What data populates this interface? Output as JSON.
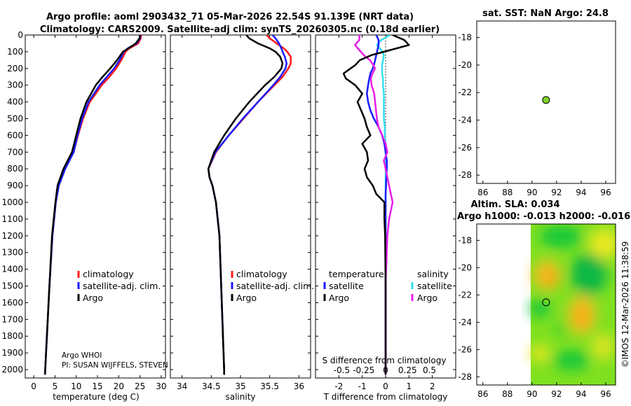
{
  "header": {
    "line1": "Argo profile: aoml 2903432_71 05-Mar-2026 22.54S 91.139E (NRT data)",
    "line2": "Climatology: CARS2009. Satellite-adj clim: synTS_20260305.nc (0.18d earlier)"
  },
  "colors": {
    "climatology": "#ff1a1a",
    "satellite": "#1a1aff",
    "argo": "#000000",
    "satellite_s": "#33e0ee",
    "argo_s": "#e81ee8",
    "sst_dot": "#7dd32b"
  },
  "chart_data": [
    {
      "id": "temperature",
      "type": "line",
      "xlabel": "temperature (deg C)",
      "ylabel": "",
      "xlim": [
        -2,
        31
      ],
      "ylim": [
        2050,
        0
      ],
      "xticks": [
        0,
        5,
        10,
        15,
        20,
        25,
        30
      ],
      "yticks": [
        0,
        100,
        200,
        300,
        400,
        500,
        600,
        700,
        800,
        900,
        1000,
        1100,
        1200,
        1300,
        1400,
        1500,
        1600,
        1700,
        1800,
        1900,
        2000
      ],
      "legend": [
        "climatology",
        "satellite-adj. clim.",
        "Argo"
      ],
      "annotation": [
        "Argo WHOI",
        "PI: SUSAN WIJFFELS, STEVEN"
      ],
      "depth": [
        0,
        20,
        50,
        80,
        100,
        150,
        200,
        250,
        300,
        400,
        500,
        600,
        700,
        800,
        900,
        1000,
        1200,
        1500,
        1800,
        2000,
        2030
      ],
      "series": [
        {
          "name": "climatology",
          "values": [
            25.3,
            25.2,
            24.6,
            22.5,
            21.6,
            20.6,
            19.4,
            17.8,
            16.0,
            13.2,
            11.6,
            10.4,
            9.4,
            7.3,
            5.8,
            5.2,
            4.4,
            3.7,
            3.1,
            2.7,
            2.65
          ]
        },
        {
          "name": "satellite-adj. clim.",
          "values": [
            25.1,
            25.0,
            24.2,
            22.1,
            21.2,
            20.2,
            18.9,
            17.2,
            15.5,
            12.9,
            11.4,
            10.3,
            9.4,
            7.4,
            5.9,
            5.2,
            4.4,
            3.7,
            3.1,
            2.7,
            2.65
          ]
        },
        {
          "name": "Argo",
          "values": [
            25.0,
            24.9,
            24.0,
            22.3,
            21.0,
            19.6,
            18.0,
            16.2,
            14.6,
            12.4,
            11.0,
            10.0,
            9.0,
            7.0,
            5.6,
            5.1,
            4.3,
            3.7,
            3.1,
            2.7,
            2.65
          ]
        }
      ]
    },
    {
      "id": "salinity",
      "type": "line",
      "xlabel": "salinity",
      "xlim": [
        33.8,
        36.2
      ],
      "ylim": [
        2050,
        0
      ],
      "xticks": [
        34,
        34.5,
        35,
        35.5,
        36
      ],
      "legend": [
        "climatology",
        "satellite-adj. clim.",
        "Argo"
      ],
      "depth": [
        0,
        20,
        50,
        80,
        100,
        130,
        170,
        200,
        250,
        300,
        400,
        500,
        600,
        700,
        800,
        850,
        900,
        1000,
        1200,
        1500,
        1800,
        2000,
        2030
      ],
      "series": [
        {
          "name": "climatology",
          "values": [
            35.45,
            35.5,
            35.62,
            35.74,
            35.8,
            35.86,
            35.86,
            35.82,
            35.72,
            35.58,
            35.3,
            35.05,
            34.8,
            34.58,
            34.45,
            34.47,
            34.52,
            34.58,
            34.64,
            34.67,
            34.7,
            34.72,
            34.72
          ]
        },
        {
          "name": "satellite-adj. clim.",
          "values": [
            35.55,
            35.6,
            35.66,
            35.7,
            35.72,
            35.76,
            35.79,
            35.77,
            35.68,
            35.56,
            35.3,
            35.04,
            34.8,
            34.57,
            34.45,
            34.47,
            34.52,
            34.58,
            34.64,
            34.67,
            34.7,
            34.72,
            34.72
          ]
        },
        {
          "name": "Argo",
          "values": [
            35.1,
            35.15,
            35.3,
            35.5,
            35.6,
            35.68,
            35.72,
            35.7,
            35.58,
            35.42,
            35.15,
            34.92,
            34.72,
            34.55,
            34.45,
            34.47,
            34.52,
            34.58,
            34.64,
            34.67,
            34.7,
            34.72,
            34.72
          ]
        }
      ]
    },
    {
      "id": "difference",
      "type": "line",
      "xlabel": "T difference from climatology",
      "top_label": "S difference from climatology",
      "xlim": [
        -3,
        3
      ],
      "ylim": [
        2050,
        0
      ],
      "xticks": [
        -2,
        -1,
        0,
        1,
        2
      ],
      "s_ticks": [
        -0.5,
        -0.25,
        0,
        0.25,
        0.5
      ],
      "legend_titles": [
        "temperature",
        "salinity"
      ],
      "legend": [
        "satellite",
        "Argo",
        "satellite",
        "Argo"
      ],
      "depth": [
        0,
        30,
        60,
        90,
        120,
        150,
        180,
        200,
        230,
        260,
        300,
        350,
        400,
        450,
        500,
        550,
        600,
        650,
        700,
        750,
        800,
        850,
        900,
        950,
        1000,
        1100,
        1200,
        1500,
        1800,
        2000,
        2030
      ],
      "series": [
        {
          "name": "T satellite",
          "values": [
            -0.4,
            -0.3,
            -0.3,
            -0.35,
            -0.4,
            -0.45,
            -0.5,
            -0.55,
            -0.65,
            -0.7,
            -0.75,
            -0.8,
            -0.75,
            -0.65,
            -0.5,
            -0.3,
            -0.15,
            -0.05,
            0.0,
            0.05,
            0.05,
            0.03,
            0.02,
            0.0,
            0.0,
            0.0,
            0.0,
            0.0,
            0.0,
            0.0,
            0.0
          ]
        },
        {
          "name": "T Argo",
          "values": [
            0.3,
            0.8,
            1.0,
            0.2,
            -0.6,
            -1.1,
            -1.3,
            -1.5,
            -1.8,
            -1.7,
            -1.3,
            -1.0,
            -1.2,
            -1.05,
            -0.9,
            -0.8,
            -0.65,
            -1.0,
            -0.8,
            -0.75,
            -0.9,
            -0.8,
            -0.55,
            -0.4,
            -0.05,
            -0.05,
            -0.02,
            0.0,
            0.0,
            0.0,
            0.0
          ]
        },
        {
          "name": "S satellite",
          "values": [
            0.05,
            -0.05,
            -0.1,
            -0.05,
            -0.02,
            -0.03,
            -0.04,
            -0.04,
            -0.04,
            -0.03,
            -0.03,
            -0.02,
            -0.02,
            -0.02,
            -0.02,
            -0.01,
            -0.01,
            0.0,
            0.0,
            0.0,
            0.0,
            0.0,
            0.0,
            0.0,
            0.0,
            0.0,
            0.0,
            0.0,
            0.0,
            0.0,
            0.0
          ]
        },
        {
          "name": "S Argo",
          "values": [
            -0.3,
            -0.3,
            -0.35,
            -0.3,
            -0.25,
            -0.18,
            -0.14,
            -0.12,
            -0.15,
            -0.17,
            -0.16,
            -0.13,
            -0.12,
            -0.11,
            -0.1,
            -0.08,
            -0.04,
            0.0,
            0.02,
            -0.02,
            0.0,
            0.02,
            0.04,
            0.06,
            0.08,
            0.04,
            0.02,
            0.0,
            0.0,
            0.0,
            0.0
          ]
        }
      ]
    },
    {
      "id": "sst_map",
      "type": "scatter",
      "title": "sat. SST: NaN Argo: 24.8",
      "xlim": [
        85.5,
        96.8
      ],
      "ylim": [
        -28.6,
        -16.8
      ],
      "xticks": [
        86,
        88,
        90,
        92,
        94,
        96
      ],
      "yticks": [
        -18,
        -20,
        -22,
        -24,
        -26,
        -28
      ],
      "points": [
        {
          "lon": 91.14,
          "lat": -22.54
        }
      ]
    },
    {
      "id": "sla_map",
      "type": "heatmap",
      "title_line1": "Altim. SLA: 0.034",
      "title_line2": "Argo h1000: -0.013 h2000: -0.016",
      "xlim": [
        85.5,
        96.8
      ],
      "ylim": [
        -28.6,
        -16.8
      ],
      "xticks": [
        86,
        88,
        90,
        92,
        94,
        96
      ],
      "yticks": [
        -18,
        -20,
        -22,
        -24,
        -26,
        -28
      ],
      "data_lon_min": 89.9,
      "points": [
        {
          "lon": 91.14,
          "lat": -22.54
        }
      ]
    }
  ],
  "footer": {
    "timestamp": "©IMOS 12-Mar-2026 11:38:59"
  }
}
